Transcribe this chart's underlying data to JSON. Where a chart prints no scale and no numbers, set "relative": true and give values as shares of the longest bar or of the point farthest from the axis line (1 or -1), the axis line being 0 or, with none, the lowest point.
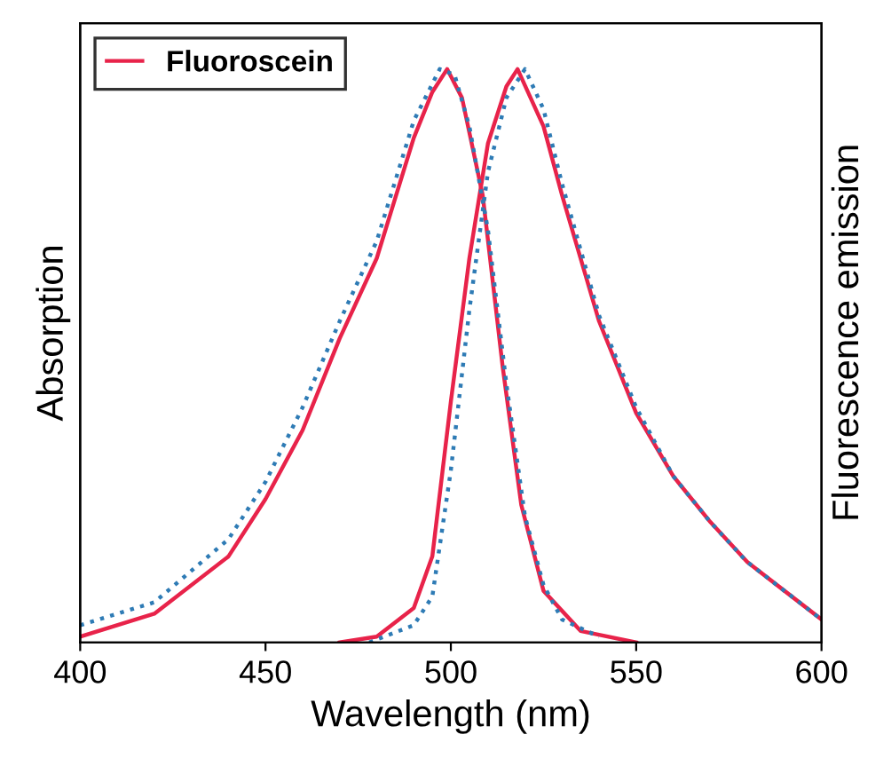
{
  "chart_data": {
    "type": "line",
    "xlabel": "Wavelength (nm)",
    "ylabel": "Absorption",
    "y2label": "Fluorescence emission",
    "xlim": [
      400,
      600
    ],
    "xticks": [
      400,
      450,
      500,
      550,
      600
    ],
    "relative": true,
    "legend": "top left",
    "grid": false,
    "series": [
      {
        "name": "Fluoroscein",
        "color": "#e8234a",
        "line_style": "solid",
        "x": [
          400,
          420,
          440,
          450,
          460,
          470,
          480,
          490,
          495,
          499,
          503,
          508.6,
          514,
          519,
          525,
          535,
          550
        ],
        "values": [
          0.01,
          0.05,
          0.15,
          0.25,
          0.37,
          0.53,
          0.67,
          0.88,
          0.96,
          1.0,
          0.95,
          0.78,
          0.48,
          0.24,
          0.09,
          0.02,
          0
        ]
      },
      {
        "color": "#e8234a",
        "line_style": "solid",
        "x": [
          470,
          480,
          490,
          495,
          500,
          505,
          510,
          515,
          518,
          525,
          530,
          540,
          550,
          560,
          570,
          580,
          590,
          600
        ],
        "values": [
          0,
          0.01,
          0.06,
          0.15,
          0.42,
          0.67,
          0.87,
          0.97,
          1.0,
          0.9,
          0.78,
          0.56,
          0.4,
          0.29,
          0.21,
          0.14,
          0.09,
          0.04
        ]
      },
      {
        "color": "#2e7bb5",
        "line_style": "dotted",
        "x": [
          400,
          420,
          440,
          450,
          460,
          470,
          480,
          490,
          497,
          501,
          505,
          510,
          515,
          520,
          525,
          530,
          540
        ],
        "values": [
          0.03,
          0.07,
          0.18,
          0.28,
          0.41,
          0.56,
          0.7,
          0.91,
          1.0,
          0.99,
          0.9,
          0.72,
          0.45,
          0.22,
          0.1,
          0.04,
          0.01
        ]
      },
      {
        "color": "#2e7bb5",
        "line_style": "dotted",
        "x": [
          478,
          490,
          495,
          500,
          505,
          510,
          515,
          520,
          525,
          530,
          540,
          550,
          560,
          570,
          580,
          590,
          600
        ],
        "values": [
          0,
          0.03,
          0.08,
          0.3,
          0.58,
          0.82,
          0.95,
          1.0,
          0.93,
          0.8,
          0.57,
          0.41,
          0.29,
          0.21,
          0.14,
          0.09,
          0.04
        ]
      }
    ]
  }
}
